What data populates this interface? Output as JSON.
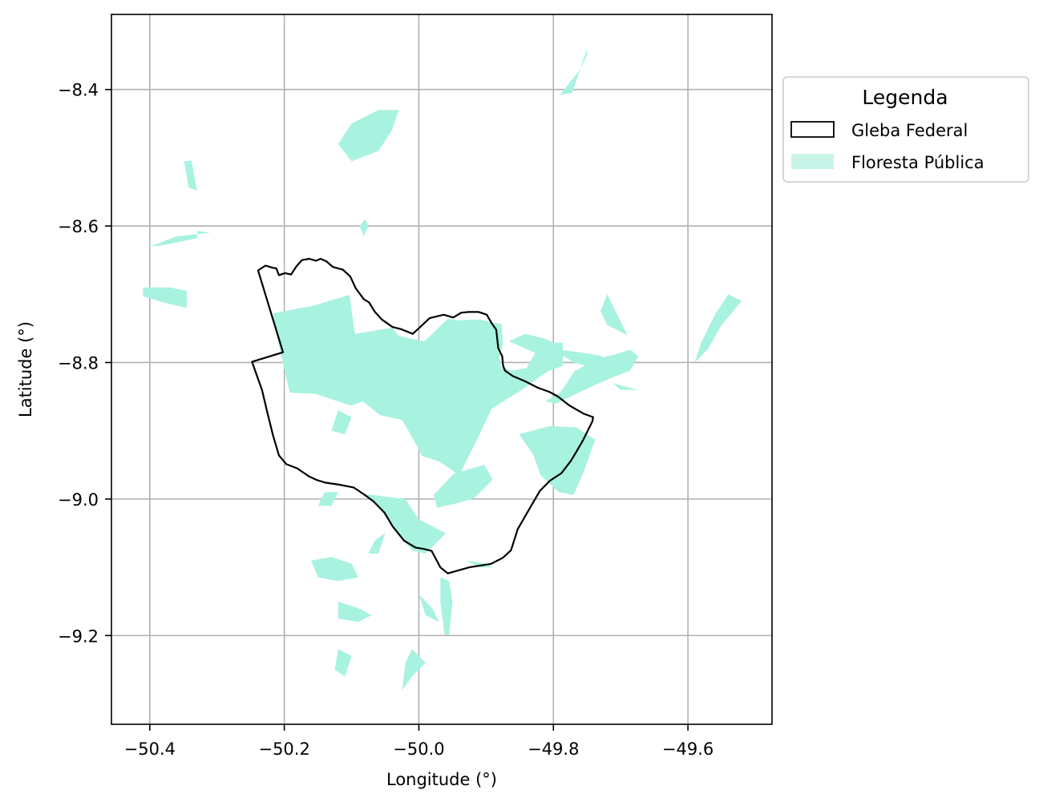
{
  "chart_data": {
    "type": "map",
    "xlabel": "Longitude (°)",
    "ylabel": "Latitude (°)",
    "xlim": [
      -50.457,
      -49.475
    ],
    "ylim": [
      -9.33,
      -8.29
    ],
    "xticks": [
      -50.4,
      -50.2,
      -50.0,
      -49.8,
      -49.6
    ],
    "xtick_labels": [
      "−50.4",
      "−50.2",
      "−50.0",
      "−49.8",
      "−49.6"
    ],
    "yticks": [
      -8.4,
      -8.6,
      -8.8,
      -9.0,
      -9.2
    ],
    "ytick_labels": [
      "−8.4",
      "−8.6",
      "−8.8",
      "−9.0",
      "−9.2"
    ],
    "grid": true,
    "legend": {
      "title": "Legenda",
      "placement": "outside-upper-right",
      "entries": [
        {
          "label": "Gleba Federal",
          "fill": "#ffffff",
          "edge": "#000000"
        },
        {
          "label": "Floresta Pública",
          "fill": "#c8f5e8",
          "edge": "none"
        }
      ]
    },
    "colors": {
      "forest": "#a8f2e0",
      "gleba_edge": "#000000"
    },
    "gleba_federal": [
      [
        -50.239,
        -8.665
      ],
      [
        -50.228,
        -8.658
      ],
      [
        -50.218,
        -8.661
      ],
      [
        -50.212,
        -8.662
      ],
      [
        -50.208,
        -8.672
      ],
      [
        -50.199,
        -8.669
      ],
      [
        -50.19,
        -8.671
      ],
      [
        -50.182,
        -8.659
      ],
      [
        -50.174,
        -8.65
      ],
      [
        -50.163,
        -8.648
      ],
      [
        -50.153,
        -8.651
      ],
      [
        -50.146,
        -8.648
      ],
      [
        -50.137,
        -8.652
      ],
      [
        -50.128,
        -8.66
      ],
      [
        -50.113,
        -8.664
      ],
      [
        -50.102,
        -8.674
      ],
      [
        -50.094,
        -8.691
      ],
      [
        -50.082,
        -8.707
      ],
      [
        -50.074,
        -8.712
      ],
      [
        -50.066,
        -8.725
      ],
      [
        -50.055,
        -8.737
      ],
      [
        -50.039,
        -8.748
      ],
      [
        -50.027,
        -8.751
      ],
      [
        -50.009,
        -8.758
      ],
      [
        -49.997,
        -8.747
      ],
      [
        -49.984,
        -8.735
      ],
      [
        -49.963,
        -8.73
      ],
      [
        -49.949,
        -8.734
      ],
      [
        -49.937,
        -8.727
      ],
      [
        -49.926,
        -8.726
      ],
      [
        -49.911,
        -8.726
      ],
      [
        -49.899,
        -8.73
      ],
      [
        -49.892,
        -8.742
      ],
      [
        -49.885,
        -8.752
      ],
      [
        -49.882,
        -8.779
      ],
      [
        -49.876,
        -8.791
      ],
      [
        -49.875,
        -8.804
      ],
      [
        -49.872,
        -8.812
      ],
      [
        -49.86,
        -8.82
      ],
      [
        -49.843,
        -8.827
      ],
      [
        -49.823,
        -8.837
      ],
      [
        -49.806,
        -8.843
      ],
      [
        -49.793,
        -8.85
      ],
      [
        -49.784,
        -8.857
      ],
      [
        -49.776,
        -8.863
      ],
      [
        -49.755,
        -8.875
      ],
      [
        -49.741,
        -8.88
      ],
      [
        -49.742,
        -8.886
      ],
      [
        -49.756,
        -8.914
      ],
      [
        -49.766,
        -8.931
      ],
      [
        -49.774,
        -8.944
      ],
      [
        -49.788,
        -8.962
      ],
      [
        -49.805,
        -8.973
      ],
      [
        -49.82,
        -8.988
      ],
      [
        -49.839,
        -9.02
      ],
      [
        -49.853,
        -9.044
      ],
      [
        -49.863,
        -9.075
      ],
      [
        -49.875,
        -9.086
      ],
      [
        -49.893,
        -9.095
      ],
      [
        -49.925,
        -9.1
      ],
      [
        -49.957,
        -9.109
      ],
      [
        -49.968,
        -9.1
      ],
      [
        -49.981,
        -9.076
      ],
      [
        -49.993,
        -9.073
      ],
      [
        -50.005,
        -9.071
      ],
      [
        -50.022,
        -9.061
      ],
      [
        -50.039,
        -9.04
      ],
      [
        -50.051,
        -9.02
      ],
      [
        -50.068,
        -9.003
      ],
      [
        -50.082,
        -8.993
      ],
      [
        -50.097,
        -8.983
      ],
      [
        -50.118,
        -8.979
      ],
      [
        -50.139,
        -8.976
      ],
      [
        -50.152,
        -8.972
      ],
      [
        -50.163,
        -8.967
      ],
      [
        -50.181,
        -8.955
      ],
      [
        -50.197,
        -8.949
      ],
      [
        -50.208,
        -8.936
      ],
      [
        -50.217,
        -8.906
      ],
      [
        -50.226,
        -8.87
      ],
      [
        -50.233,
        -8.841
      ],
      [
        -50.248,
        -8.799
      ],
      [
        -50.202,
        -8.785
      ]
    ],
    "floresta_publica": [
      [
        [
          -50.217,
          -8.728
        ],
        [
          -50.158,
          -8.717
        ],
        [
          -50.103,
          -8.701
        ],
        [
          -50.095,
          -8.758
        ],
        [
          -50.039,
          -8.749
        ],
        [
          -50.03,
          -8.761
        ],
        [
          -49.992,
          -8.769
        ],
        [
          -49.957,
          -8.736
        ],
        [
          -49.94,
          -8.738
        ],
        [
          -49.91,
          -8.737
        ],
        [
          -49.877,
          -8.744
        ],
        [
          -49.875,
          -8.772
        ],
        [
          -49.88,
          -8.792
        ],
        [
          -49.878,
          -8.806
        ],
        [
          -49.862,
          -8.812
        ],
        [
          -49.84,
          -8.808
        ],
        [
          -49.818,
          -8.771
        ],
        [
          -49.786,
          -8.771
        ],
        [
          -49.786,
          -8.805
        ],
        [
          -49.809,
          -8.813
        ],
        [
          -49.844,
          -8.838
        ],
        [
          -49.892,
          -8.868
        ],
        [
          -49.914,
          -8.914
        ],
        [
          -49.94,
          -8.965
        ],
        [
          -49.97,
          -8.945
        ],
        [
          -49.995,
          -8.937
        ],
        [
          -50.012,
          -8.906
        ],
        [
          -50.025,
          -8.884
        ],
        [
          -50.058,
          -8.877
        ],
        [
          -50.083,
          -8.857
        ],
        [
          -50.101,
          -8.863
        ],
        [
          -50.153,
          -8.846
        ],
        [
          -50.192,
          -8.844
        ],
        [
          -50.207,
          -8.779
        ]
      ],
      [
        [
          -49.812,
          -8.857
        ],
        [
          -49.79,
          -8.844
        ],
        [
          -49.78,
          -8.83
        ],
        [
          -49.769,
          -8.813
        ],
        [
          -49.745,
          -8.8
        ],
        [
          -49.721,
          -8.791
        ],
        [
          -49.707,
          -8.788
        ],
        [
          -49.686,
          -8.781
        ],
        [
          -49.674,
          -8.791
        ],
        [
          -49.686,
          -8.812
        ],
        [
          -49.725,
          -8.827
        ],
        [
          -49.771,
          -8.848
        ],
        [
          -49.795,
          -8.86
        ]
      ],
      [
        [
          -49.866,
          -8.769
        ],
        [
          -49.842,
          -8.758
        ],
        [
          -49.812,
          -8.765
        ],
        [
          -49.792,
          -8.774
        ],
        [
          -49.78,
          -8.79
        ],
        [
          -49.805,
          -8.795
        ],
        [
          -49.825,
          -8.787
        ]
      ],
      [
        [
          -49.851,
          -8.905
        ],
        [
          -49.805,
          -8.893
        ],
        [
          -49.766,
          -8.895
        ],
        [
          -49.738,
          -8.913
        ],
        [
          -49.755,
          -8.96
        ],
        [
          -49.77,
          -8.994
        ],
        [
          -49.792,
          -8.99
        ],
        [
          -49.819,
          -8.965
        ],
        [
          -49.83,
          -8.935
        ]
      ],
      [
        [
          -49.948,
          -8.963
        ],
        [
          -49.903,
          -8.95
        ],
        [
          -49.89,
          -8.971
        ],
        [
          -49.918,
          -8.999
        ],
        [
          -49.943,
          -9.006
        ],
        [
          -49.973,
          -9.013
        ],
        [
          -49.978,
          -8.994
        ]
      ],
      [
        [
          -50.109,
          -8.989
        ],
        [
          -50.085,
          -8.992
        ],
        [
          -50.065,
          -9.007
        ],
        [
          -50.041,
          -9.037
        ],
        [
          -50.021,
          -9.063
        ],
        [
          -50.01,
          -9.075
        ],
        [
          -49.99,
          -9.08
        ],
        [
          -49.96,
          -9.05
        ],
        [
          -50.0,
          -9.03
        ],
        [
          -50.02,
          -9.0
        ]
      ],
      [
        [
          -49.968,
          -9.115
        ],
        [
          -49.955,
          -9.12
        ],
        [
          -49.95,
          -9.15
        ],
        [
          -49.955,
          -9.2
        ],
        [
          -49.962,
          -9.198
        ],
        [
          -49.968,
          -9.15
        ]
      ],
      [
        [
          -50.16,
          -9.09
        ],
        [
          -50.13,
          -9.085
        ],
        [
          -50.1,
          -9.095
        ],
        [
          -50.09,
          -9.115
        ],
        [
          -50.12,
          -9.12
        ],
        [
          -50.15,
          -9.115
        ]
      ],
      [
        [
          -50.12,
          -9.15
        ],
        [
          -50.09,
          -9.16
        ],
        [
          -50.07,
          -9.17
        ],
        [
          -50.09,
          -9.18
        ],
        [
          -50.12,
          -9.175
        ]
      ],
      [
        [
          -50.12,
          -9.22
        ],
        [
          -50.1,
          -9.23
        ],
        [
          -50.11,
          -9.26
        ],
        [
          -50.125,
          -9.25
        ]
      ],
      [
        [
          -50.33,
          -8.548
        ],
        [
          -50.342,
          -8.544
        ],
        [
          -50.349,
          -8.505
        ],
        [
          -50.338,
          -8.504
        ]
      ],
      [
        [
          -50.329,
          -8.607
        ],
        [
          -50.31,
          -8.61
        ],
        [
          -50.36,
          -8.615
        ],
        [
          -50.4,
          -8.63
        ],
        [
          -50.38,
          -8.628
        ],
        [
          -50.33,
          -8.618
        ]
      ],
      [
        [
          -50.41,
          -8.69
        ],
        [
          -50.37,
          -8.69
        ],
        [
          -50.345,
          -8.695
        ],
        [
          -50.345,
          -8.72
        ],
        [
          -50.38,
          -8.712
        ],
        [
          -50.41,
          -8.703
        ]
      ],
      [
        [
          -50.1,
          -8.45
        ],
        [
          -50.06,
          -8.43
        ],
        [
          -50.03,
          -8.43
        ],
        [
          -50.04,
          -8.46
        ],
        [
          -50.06,
          -8.49
        ],
        [
          -50.1,
          -8.505
        ],
        [
          -50.12,
          -8.48
        ]
      ],
      [
        [
          -49.75,
          -8.34
        ],
        [
          -49.75,
          -8.35
        ],
        [
          -49.76,
          -8.37
        ],
        [
          -49.78,
          -8.395
        ],
        [
          -49.79,
          -8.408
        ],
        [
          -49.772,
          -8.405
        ]
      ],
      [
        [
          -49.72,
          -8.7
        ],
        [
          -49.73,
          -8.725
        ],
        [
          -49.72,
          -8.745
        ],
        [
          -49.69,
          -8.76
        ],
        [
          -49.7,
          -8.74
        ],
        [
          -49.71,
          -8.72
        ]
      ],
      [
        [
          -49.52,
          -8.71
        ],
        [
          -49.54,
          -8.7
        ],
        [
          -49.56,
          -8.73
        ],
        [
          -49.58,
          -8.77
        ],
        [
          -49.59,
          -8.8
        ],
        [
          -49.57,
          -8.78
        ],
        [
          -49.55,
          -8.745
        ]
      ],
      [
        [
          -49.8,
          -8.78
        ],
        [
          -49.76,
          -8.785
        ],
        [
          -49.73,
          -8.79
        ],
        [
          -49.71,
          -8.8
        ],
        [
          -49.73,
          -8.81
        ],
        [
          -49.77,
          -8.8
        ]
      ],
      [
        [
          -49.712,
          -8.83
        ],
        [
          -49.69,
          -8.836
        ],
        [
          -49.675,
          -8.84
        ],
        [
          -49.7,
          -8.84
        ]
      ],
      [
        [
          -49.93,
          -9.09
        ],
        [
          -49.9,
          -9.095
        ],
        [
          -49.89,
          -9.1
        ],
        [
          -49.91,
          -9.1
        ]
      ],
      [
        [
          -49.99,
          -9.24
        ],
        [
          -50.01,
          -9.22
        ],
        [
          -50.02,
          -9.24
        ],
        [
          -50.025,
          -9.28
        ],
        [
          -50.01,
          -9.26
        ]
      ],
      [
        [
          -50.0,
          -9.14
        ],
        [
          -49.98,
          -9.16
        ],
        [
          -49.97,
          -9.18
        ],
        [
          -49.99,
          -9.17
        ]
      ],
      [
        [
          -50.08,
          -8.59
        ],
        [
          -50.088,
          -8.6
        ],
        [
          -50.082,
          -8.615
        ],
        [
          -50.075,
          -8.6
        ]
      ],
      [
        [
          -50.05,
          -9.05
        ],
        [
          -50.065,
          -9.06
        ],
        [
          -50.075,
          -9.08
        ],
        [
          -50.06,
          -9.08
        ]
      ],
      [
        [
          -50.12,
          -8.99
        ],
        [
          -50.14,
          -8.99
        ],
        [
          -50.15,
          -9.01
        ],
        [
          -50.13,
          -9.01
        ]
      ],
      [
        [
          -50.1,
          -8.88
        ],
        [
          -50.12,
          -8.87
        ],
        [
          -50.13,
          -8.9
        ],
        [
          -50.11,
          -8.905
        ]
      ]
    ]
  }
}
